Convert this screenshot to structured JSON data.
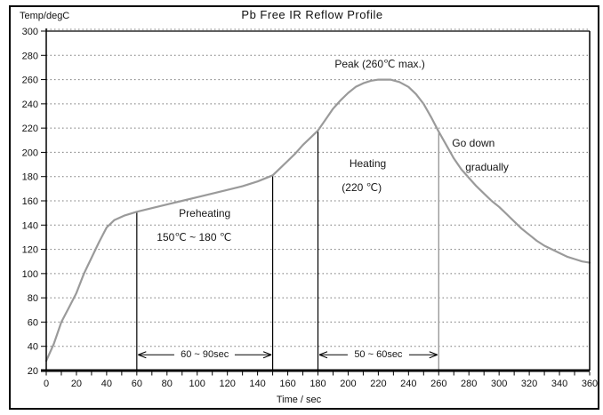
{
  "window": {
    "title": "Pb Free IR Reflow Profile"
  },
  "chart_data": {
    "type": "line",
    "title": "Pb Free IR Reflow Profile",
    "xlabel": "Time / sec",
    "ylabel": "Temp/degC",
    "xlim": [
      0,
      360
    ],
    "ylim": [
      20,
      300
    ],
    "x_tick_step": 20,
    "x_minor_tick_step": 10,
    "y_tick_step": 20,
    "grid": "horizontal-dotted",
    "legend": "none",
    "colors": {
      "curve": "#9a9a9a",
      "axis": "#000000",
      "grid": "#777777",
      "marker_dark": "#000000",
      "marker_light": "#8a8a8a"
    },
    "series": [
      {
        "name": "reflow-temperature",
        "points": [
          [
            0,
            28
          ],
          [
            5,
            42
          ],
          [
            10,
            60
          ],
          [
            15,
            72
          ],
          [
            20,
            84
          ],
          [
            25,
            100
          ],
          [
            30,
            113
          ],
          [
            35,
            126
          ],
          [
            40,
            138
          ],
          [
            45,
            144
          ],
          [
            52,
            148
          ],
          [
            60,
            151
          ],
          [
            70,
            154
          ],
          [
            80,
            157
          ],
          [
            90,
            160
          ],
          [
            100,
            163
          ],
          [
            110,
            166
          ],
          [
            120,
            169
          ],
          [
            130,
            172
          ],
          [
            140,
            176
          ],
          [
            150,
            181
          ],
          [
            155,
            187
          ],
          [
            160,
            193
          ],
          [
            165,
            199
          ],
          [
            170,
            206
          ],
          [
            175,
            212
          ],
          [
            180,
            218
          ],
          [
            185,
            227
          ],
          [
            190,
            236
          ],
          [
            195,
            243
          ],
          [
            200,
            249
          ],
          [
            205,
            254
          ],
          [
            210,
            257
          ],
          [
            215,
            259
          ],
          [
            220,
            260
          ],
          [
            228,
            260
          ],
          [
            234,
            258
          ],
          [
            240,
            254
          ],
          [
            245,
            248
          ],
          [
            250,
            240
          ],
          [
            255,
            229
          ],
          [
            260,
            217
          ],
          [
            265,
            206
          ],
          [
            270,
            195
          ],
          [
            275,
            186
          ],
          [
            280,
            179
          ],
          [
            285,
            172
          ],
          [
            290,
            166
          ],
          [
            295,
            160
          ],
          [
            300,
            155
          ],
          [
            305,
            149
          ],
          [
            310,
            143
          ],
          [
            315,
            137
          ],
          [
            320,
            132
          ],
          [
            325,
            127
          ],
          [
            330,
            123
          ],
          [
            335,
            120
          ],
          [
            340,
            117
          ],
          [
            345,
            114
          ],
          [
            350,
            112
          ],
          [
            355,
            110
          ],
          [
            360,
            109
          ]
        ]
      }
    ],
    "markers": [
      {
        "x": 60,
        "top": 151,
        "shade": "dark"
      },
      {
        "x": 150,
        "top": 181,
        "shade": "dark"
      },
      {
        "x": 180,
        "top": 218,
        "shade": "dark"
      },
      {
        "x": 260,
        "top": 216,
        "shade": "light"
      }
    ],
    "ranges": [
      {
        "label": "60 ~ 90sec",
        "from": 60,
        "to": 150,
        "temp": 33
      },
      {
        "label": "50 ~ 60sec",
        "from": 180,
        "to": 260,
        "temp": 33
      }
    ],
    "annotations": [
      {
        "id": "peak-label",
        "text": "Peak (260℃ max.)",
        "t": 221,
        "temp": 273
      },
      {
        "id": "preheating-label",
        "text": "Preheating",
        "t": 105,
        "temp": 150
      },
      {
        "id": "preheating-range-label",
        "text": "150℃ ~ 180 ℃",
        "t": 98,
        "temp": 130
      },
      {
        "id": "heating-label",
        "text": "Heating",
        "t": 213,
        "temp": 191
      },
      {
        "id": "heating-temp-label",
        "text": "(220 ℃)",
        "t": 209,
        "temp": 171
      },
      {
        "id": "go-down-label",
        "text": "Go down",
        "t": 283,
        "temp": 208
      },
      {
        "id": "gradually-label",
        "text": "gradually",
        "t": 292,
        "temp": 188
      }
    ]
  }
}
